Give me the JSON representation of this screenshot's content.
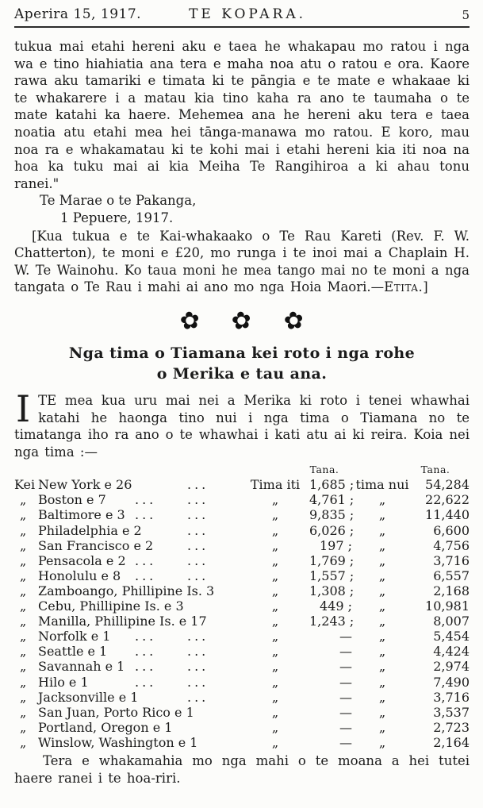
{
  "colors": {
    "paper": "#fcfcfa",
    "ink": "#1b1b1b"
  },
  "header": {
    "date": "Aperira 15, 1917.",
    "title": "TE KOPARA.",
    "page_number": "5"
  },
  "letter": {
    "para1": "tukua mai etahi hereni aku e taea he whakapau mo ratou i nga wa e tino hiahiatia ana tera e maha noa atu o ratou e ora. Kaore rawa aku tamariki e timata ki te pāngia e te mate e whakaae ki te whakarere i a matau kia tino kaha ra ano te taumaha o te mate katahi ka haere.  Mehemea ana he hereni aku tera e taea noatia atu etahi mea hei tānga-manawa mo ratou.  E koro, mau noa ra e whakamatau ki te kohi mai i etahi hereni kia iti noa na hoa ka tuku mai ai kia Meiha Te Rangihiroa a ki ahau tonu ranei.\"",
    "signature_place": "Te Marae o te Pakanga,",
    "signature_date": "1 Pepuere, 1917.",
    "editor_note_text": "[Kua tukua e te Kai-whakaako o Te Rau Kareti (Rev. F. W. Chatterton), te moni e £20, mo runga i te inoi mai a Chaplain H. W. Te Wainohu.  Ko taua moni he mea tango mai no te moni a nga tangata o Te Rau i mahi ai ano mo nga ",
    "editor_note_end": "Hoia Maori.—",
    "editor_name": "Etita.",
    "close_bracket": "]"
  },
  "ornament": {
    "icon": "flower-icon",
    "glyph": "✿"
  },
  "article": {
    "heading_line1": "Nga tima o Tiamana kei roto i nga rohe",
    "heading_line2": "o Merika e tau ana.",
    "dropcap": "I",
    "intro_rest": "TE mea kua uru mai nei a Merika ki roto i tenei whawhai katahi he haonga tino nui i nga tima o Tiamana no te timatanga iho ra ano o te whawhai i kati atu ai ki reira.  Koia nei nga tima :—",
    "closing": "Tera e whakamahia mo nga mahi o te moana a hei tutei haere ranei i te hoa-riri."
  },
  "table": {
    "col_header_iti": "Tana.",
    "col_header_nui": "Tana.",
    "rows": [
      {
        "kei": "Kei",
        "place": "New York e 26",
        "dots1": "",
        "dots2": "...",
        "itilbl": "Tima iti",
        "iti": "1,685 ;",
        "nuilbl": "tima nui",
        "nui": "54,284"
      },
      {
        "kei": "„",
        "place": "Boston e 7",
        "dots1": "...",
        "dots2": "...",
        "itilbl": "„",
        "iti": "4,761 ;",
        "nuilbl": "„",
        "nui": "22,622"
      },
      {
        "kei": "„",
        "place": "Baltimore e 3",
        "dots1": "...",
        "dots2": "...",
        "itilbl": "„",
        "iti": "9,835 ;",
        "nuilbl": "„",
        "nui": "11,440"
      },
      {
        "kei": "„",
        "place": "Philadelphia e 2",
        "dots1": "",
        "dots2": "...",
        "itilbl": "„",
        "iti": "6,026 ;",
        "nuilbl": "„",
        "nui": "6,600"
      },
      {
        "kei": "„",
        "place": "San Francisco e 2",
        "dots1": "",
        "dots2": "...",
        "itilbl": "„",
        "iti": "197 ;",
        "nuilbl": "„",
        "nui": "4,756"
      },
      {
        "kei": "„",
        "place": "Pensacola e 2",
        "dots1": "...",
        "dots2": "...",
        "itilbl": "„",
        "iti": "1,769 ;",
        "nuilbl": "„",
        "nui": "3,716"
      },
      {
        "kei": "„",
        "place": "Honolulu e 8",
        "dots1": "...",
        "dots2": "...",
        "itilbl": "„",
        "iti": "1,557 ;",
        "nuilbl": "„",
        "nui": "6,557"
      },
      {
        "kei": "„",
        "place": "Zamboango, Phillipine Is. 3",
        "dots1": "",
        "dots2": "",
        "itilbl": "„",
        "iti": "1,308 ;",
        "nuilbl": "„",
        "nui": "2,168"
      },
      {
        "kei": "„",
        "place": "Cebu, Phillipine Is. e 3",
        "dots1": "",
        "dots2": "",
        "itilbl": "„",
        "iti": "449 ;",
        "nuilbl": "„",
        "nui": "10,981"
      },
      {
        "kei": "„",
        "place": "Manilla, Phillipine Is. e 17",
        "dots1": "",
        "dots2": "",
        "itilbl": "„",
        "iti": "1,243 ;",
        "nuilbl": "„",
        "nui": "8,007"
      },
      {
        "kei": "„",
        "place": "Norfolk e 1",
        "dots1": "...",
        "dots2": "...",
        "itilbl": "„",
        "iti": "—",
        "nuilbl": "„",
        "nui": "5,454"
      },
      {
        "kei": "„",
        "place": "Seattle e 1",
        "dots1": "...",
        "dots2": "...",
        "itilbl": "„",
        "iti": "—",
        "nuilbl": "„",
        "nui": "4,424"
      },
      {
        "kei": "„",
        "place": "Savannah e 1",
        "dots1": "...",
        "dots2": "...",
        "itilbl": "„",
        "iti": "—",
        "nuilbl": "„",
        "nui": "2,974"
      },
      {
        "kei": "„",
        "place": "Hilo e 1",
        "dots1": "...",
        "dots2": "...",
        "itilbl": "„",
        "iti": "—",
        "nuilbl": "„",
        "nui": "7,490"
      },
      {
        "kei": "„",
        "place": "Jacksonville e 1",
        "dots1": "",
        "dots2": "...",
        "itilbl": "„",
        "iti": "—",
        "nuilbl": "„",
        "nui": "3,716"
      },
      {
        "kei": "„",
        "place": "San Juan, Porto Rico e 1",
        "dots1": "",
        "dots2": "",
        "itilbl": "„",
        "iti": "—",
        "nuilbl": "„",
        "nui": "3,537"
      },
      {
        "kei": "„",
        "place": "Portland, Oregon e 1",
        "dots1": "",
        "dots2": "",
        "itilbl": "„",
        "iti": "—",
        "nuilbl": "„",
        "nui": "2,723"
      },
      {
        "kei": "„",
        "place": "Winslow, Washington e 1",
        "dots1": "",
        "dots2": "",
        "itilbl": "„",
        "iti": "—",
        "nuilbl": "„",
        "nui": "2,164"
      }
    ]
  }
}
